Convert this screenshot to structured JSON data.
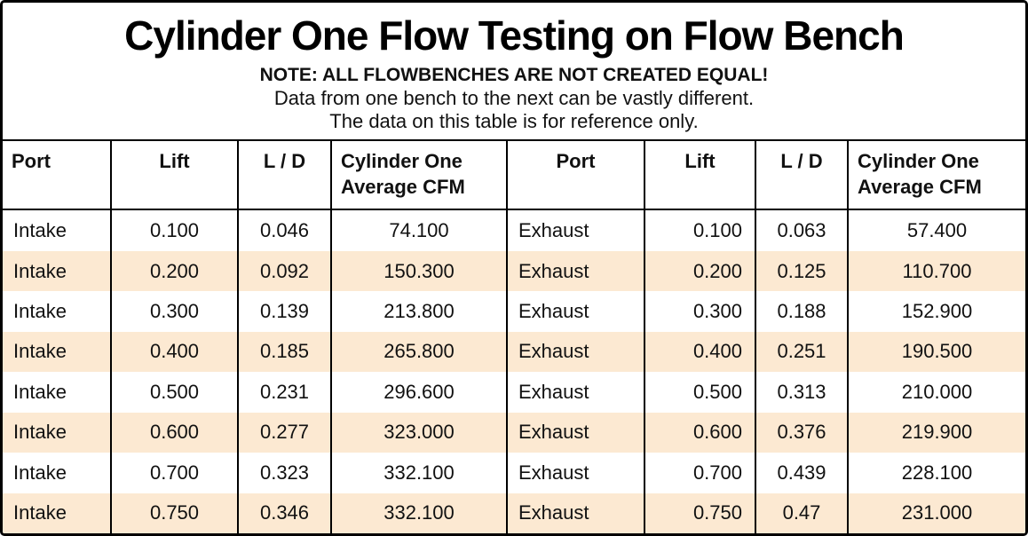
{
  "title": "Cylinder One Flow Testing on Flow Bench",
  "notes": {
    "line1": "NOTE: ALL FLOWBENCHES ARE NOT CREATED EQUAL!",
    "line2": "Data from one bench to the next can be vastly different.",
    "line3": "The data on this table is for reference only."
  },
  "colors": {
    "row_alt": "#fce9d2",
    "border": "#000000",
    "text": "#111111"
  },
  "chart_data": {
    "type": "table",
    "columns": [
      "Port",
      "Lift",
      "L / D",
      "Cylinder One Average CFM",
      "Port",
      "Lift",
      "L / D",
      "Cylinder One Average CFM"
    ],
    "rows": [
      [
        "Intake",
        "0.100",
        "0.046",
        "74.100",
        "Exhaust",
        "0.100",
        "0.063",
        "57.400"
      ],
      [
        "Intake",
        "0.200",
        "0.092",
        "150.300",
        "Exhaust",
        "0.200",
        "0.125",
        "110.700"
      ],
      [
        "Intake",
        "0.300",
        "0.139",
        "213.800",
        "Exhaust",
        "0.300",
        "0.188",
        "152.900"
      ],
      [
        "Intake",
        "0.400",
        "0.185",
        "265.800",
        "Exhaust",
        "0.400",
        "0.251",
        "190.500"
      ],
      [
        "Intake",
        "0.500",
        "0.231",
        "296.600",
        "Exhaust",
        "0.500",
        "0.313",
        "210.000"
      ],
      [
        "Intake",
        "0.600",
        "0.277",
        "323.000",
        "Exhaust",
        "0.600",
        "0.376",
        "219.900"
      ],
      [
        "Intake",
        "0.700",
        "0.323",
        "332.100",
        "Exhaust",
        "0.700",
        "0.439",
        "228.100"
      ],
      [
        "Intake",
        "0.750",
        "0.346",
        "332.100",
        "Exhaust",
        "0.750",
        "0.47",
        "231.000"
      ]
    ]
  }
}
